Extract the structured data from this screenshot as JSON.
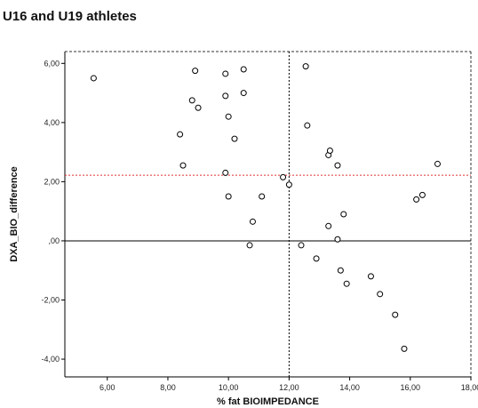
{
  "chart_data": {
    "type": "scatter",
    "title": "U16 and U19 athletes",
    "xlabel": "% fat  BIOIMPEDANCE",
    "ylabel": "DXA_BIO_difference",
    "xlim": [
      4.6,
      18.0
    ],
    "ylim": [
      -4.6,
      6.4
    ],
    "x_ticks": [
      6,
      8,
      10,
      12,
      14,
      16,
      18
    ],
    "x_tick_labels": [
      "6,00",
      "8,00",
      "10,00",
      "12,00",
      "14,00",
      "16,00",
      "18,00"
    ],
    "y_ticks": [
      6,
      4,
      2,
      0,
      -2,
      -4
    ],
    "y_tick_labels": [
      "6,00",
      "4,00",
      "2,00",
      ",00",
      "-2,00",
      "-4,00"
    ],
    "reference_lines": [
      {
        "orientation": "horizontal",
        "value": 0,
        "style": "solid",
        "color": "#000000"
      },
      {
        "orientation": "horizontal",
        "value": 2.22,
        "style": "dotted",
        "color": "#e03030"
      },
      {
        "orientation": "vertical",
        "value": 12.0,
        "style": "dotted",
        "color": "#000000"
      }
    ],
    "points": [
      {
        "x": 5.55,
        "y": 5.5
      },
      {
        "x": 8.4,
        "y": 3.6
      },
      {
        "x": 8.5,
        "y": 2.55
      },
      {
        "x": 8.8,
        "y": 4.75
      },
      {
        "x": 8.9,
        "y": 5.75
      },
      {
        "x": 9.0,
        "y": 4.5
      },
      {
        "x": 9.9,
        "y": 5.65
      },
      {
        "x": 9.9,
        "y": 4.9
      },
      {
        "x": 9.9,
        "y": 2.3
      },
      {
        "x": 10.0,
        "y": 4.2
      },
      {
        "x": 10.0,
        "y": 1.5
      },
      {
        "x": 10.2,
        "y": 3.45
      },
      {
        "x": 10.5,
        "y": 5.8
      },
      {
        "x": 10.5,
        "y": 5.0
      },
      {
        "x": 10.7,
        "y": -0.15
      },
      {
        "x": 10.8,
        "y": 0.65
      },
      {
        "x": 11.1,
        "y": 1.5
      },
      {
        "x": 11.8,
        "y": 2.15
      },
      {
        "x": 12.0,
        "y": 1.9
      },
      {
        "x": 12.4,
        "y": -0.15
      },
      {
        "x": 12.55,
        "y": 5.9
      },
      {
        "x": 12.6,
        "y": 3.9
      },
      {
        "x": 12.9,
        "y": -0.6
      },
      {
        "x": 13.3,
        "y": 2.9
      },
      {
        "x": 13.35,
        "y": 3.05
      },
      {
        "x": 13.3,
        "y": 0.5
      },
      {
        "x": 13.6,
        "y": 2.55
      },
      {
        "x": 13.6,
        "y": 0.05
      },
      {
        "x": 13.7,
        "y": -1.0
      },
      {
        "x": 13.8,
        "y": 0.9
      },
      {
        "x": 13.9,
        "y": -1.45
      },
      {
        "x": 14.7,
        "y": -1.2
      },
      {
        "x": 15.0,
        "y": -1.8
      },
      {
        "x": 15.5,
        "y": -2.5
      },
      {
        "x": 15.8,
        "y": -3.65
      },
      {
        "x": 16.2,
        "y": 1.4
      },
      {
        "x": 16.4,
        "y": 1.55
      },
      {
        "x": 16.9,
        "y": 2.6
      }
    ],
    "grid": false,
    "legend": "none"
  }
}
